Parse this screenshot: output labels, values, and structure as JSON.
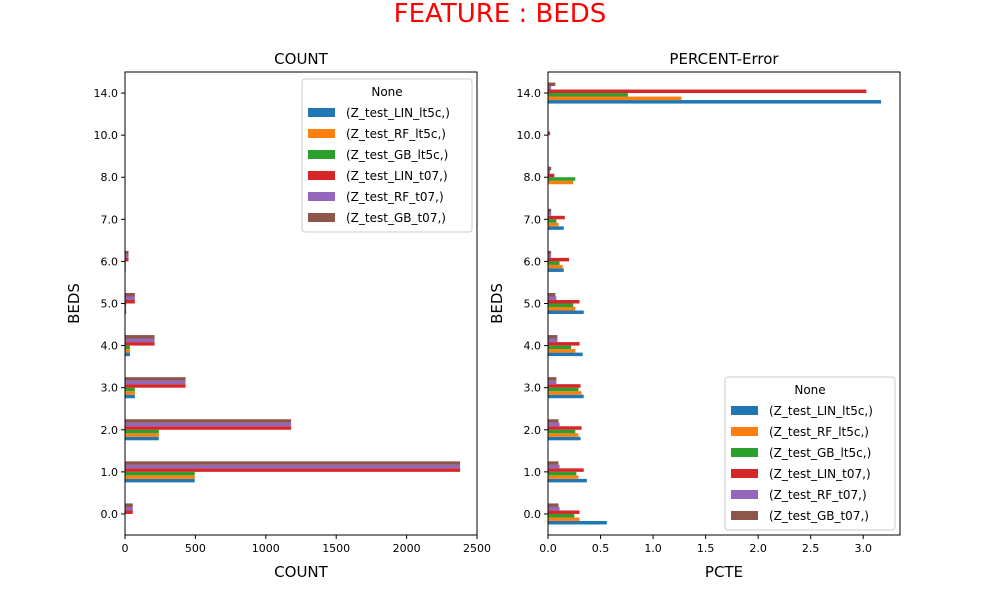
{
  "figure": {
    "suptitle": "FEATURE : BEDS",
    "suptitle_color": "#ff0000"
  },
  "chart_data": [
    {
      "type": "bar",
      "orientation": "horizontal",
      "title": "COUNT",
      "xlabel": "COUNT",
      "ylabel": "BEDS",
      "xlim": [
        0,
        2500
      ],
      "xticks": [
        "0",
        "500",
        "1000",
        "1500",
        "2000",
        "2500"
      ],
      "categories": [
        "0.0",
        "1.0",
        "2.0",
        "3.0",
        "4.0",
        "5.0",
        "6.0",
        "7.0",
        "8.0",
        "10.0",
        "14.0"
      ],
      "legend": {
        "title": "None",
        "position": "upper right"
      },
      "grid": false,
      "series": [
        {
          "name": "(Z_test_LIN_lt5c,)",
          "color": "#1f77b4",
          "values": [
            0,
            495,
            240,
            70,
            35,
            8,
            2,
            0,
            0,
            0,
            0
          ]
        },
        {
          "name": "(Z_test_RF_lt5c,)",
          "color": "#ff7f0e",
          "values": [
            0,
            495,
            240,
            70,
            35,
            8,
            2,
            0,
            0,
            0,
            0
          ]
        },
        {
          "name": "(Z_test_GB_lt5c,)",
          "color": "#2ca02c",
          "values": [
            0,
            495,
            240,
            70,
            35,
            8,
            2,
            0,
            0,
            0,
            0
          ]
        },
        {
          "name": "(Z_test_LIN_t07,)",
          "color": "#d62728",
          "values": [
            55,
            2380,
            1180,
            430,
            210,
            70,
            25,
            0,
            0,
            0,
            0
          ]
        },
        {
          "name": "(Z_test_RF_t07,)",
          "color": "#9467bd",
          "values": [
            55,
            2380,
            1180,
            430,
            210,
            70,
            25,
            0,
            0,
            0,
            0
          ]
        },
        {
          "name": "(Z_test_GB_t07,)",
          "color": "#8c564b",
          "values": [
            55,
            2380,
            1180,
            430,
            210,
            70,
            25,
            0,
            0,
            0,
            0
          ]
        }
      ]
    },
    {
      "type": "bar",
      "orientation": "horizontal",
      "title": "PERCENT-Error",
      "xlabel": "PCTE",
      "ylabel": "BEDS",
      "xlim": [
        0,
        3.35
      ],
      "xticks": [
        "0.0",
        "0.5",
        "1.0",
        "1.5",
        "2.0",
        "2.5",
        "3.0"
      ],
      "categories": [
        "0.0",
        "1.0",
        "2.0",
        "3.0",
        "4.0",
        "5.0",
        "6.0",
        "7.0",
        "8.0",
        "10.0",
        "14.0"
      ],
      "legend": {
        "title": "None",
        "position": "lower right"
      },
      "grid": false,
      "series": [
        {
          "name": "(Z_test_LIN_lt5c,)",
          "color": "#1f77b4",
          "values": [
            0.56,
            0.37,
            0.31,
            0.34,
            0.33,
            0.34,
            0.15,
            0.15,
            0,
            0,
            3.17
          ]
        },
        {
          "name": "(Z_test_RF_lt5c,)",
          "color": "#ff7f0e",
          "values": [
            0.3,
            0.29,
            0.29,
            0.32,
            0.26,
            0.26,
            0.14,
            0.1,
            0.24,
            0,
            1.27
          ]
        },
        {
          "name": "(Z_test_GB_lt5c,)",
          "color": "#2ca02c",
          "values": [
            0.25,
            0.27,
            0.26,
            0.29,
            0.22,
            0.24,
            0.11,
            0.08,
            0.26,
            0,
            0.76
          ]
        },
        {
          "name": "(Z_test_LIN_t07,)",
          "color": "#d62728",
          "values": [
            0.3,
            0.34,
            0.32,
            0.31,
            0.3,
            0.3,
            0.2,
            0.16,
            0.06,
            0.02,
            3.03
          ]
        },
        {
          "name": "(Z_test_RF_t07,)",
          "color": "#9467bd",
          "values": [
            0.11,
            0.11,
            0.11,
            0.08,
            0.09,
            0.08,
            0.03,
            0.03,
            0.02,
            0,
            0.03
          ]
        },
        {
          "name": "(Z_test_GB_t07,)",
          "color": "#8c564b",
          "values": [
            0.1,
            0.1,
            0.1,
            0.08,
            0.09,
            0.07,
            0.03,
            0.03,
            0.03,
            0,
            0.07
          ]
        }
      ]
    }
  ]
}
